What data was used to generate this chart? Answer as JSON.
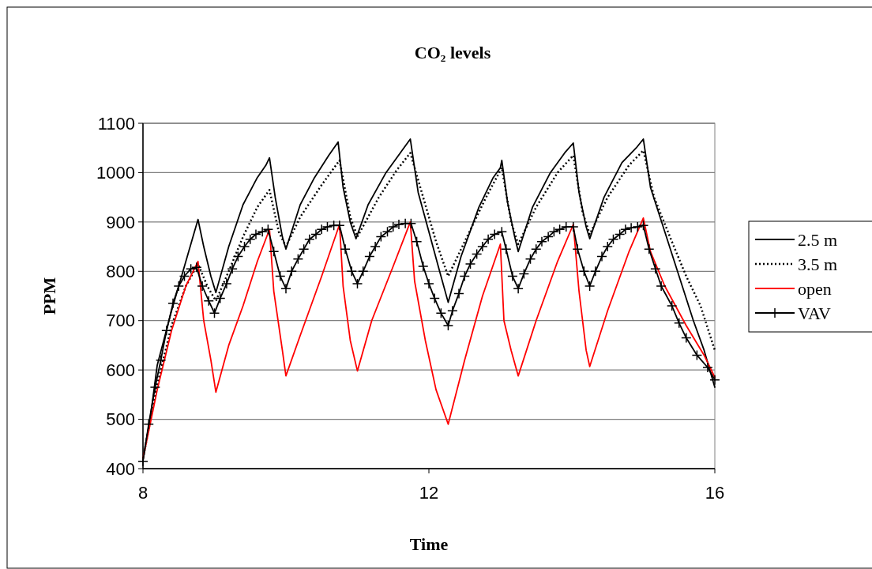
{
  "chart_data": {
    "type": "line",
    "title": "CO₂ levels",
    "xlabel": "Time",
    "ylabel": "PPM",
    "xlim": [
      8,
      16
    ],
    "xticks": [
      8,
      12,
      16
    ],
    "ylim": [
      400,
      1100
    ],
    "yticks": [
      400,
      500,
      600,
      700,
      800,
      900,
      1000,
      1100
    ],
    "grid": "y",
    "legend": "right",
    "series": [
      {
        "name": "2.5 m",
        "color": "#000000",
        "line_style": "solid",
        "marker": "none",
        "x": [
          8,
          8.1,
          8.2,
          8.4,
          8.6,
          8.7,
          8.77,
          8.85,
          8.95,
          9.02,
          9.2,
          9.4,
          9.6,
          9.72,
          9.77,
          9.85,
          9.95,
          10.0,
          10.2,
          10.4,
          10.6,
          10.73,
          10.8,
          10.9,
          10.98,
          11.15,
          11.4,
          11.6,
          11.74,
          11.85,
          12.0,
          12.15,
          12.27,
          12.45,
          12.7,
          12.9,
          13.0,
          13.02,
          13.1,
          13.2,
          13.25,
          13.45,
          13.7,
          13.9,
          14.02,
          14.1,
          14.2,
          14.25,
          14.45,
          14.7,
          14.9,
          15.0,
          15.1,
          15.3,
          15.5,
          15.7,
          15.85,
          16.0
        ],
        "values": [
          420,
          500,
          610,
          720,
          820,
          870,
          905,
          850,
          790,
          757,
          850,
          935,
          990,
          1015,
          1030,
          950,
          870,
          845,
          935,
          990,
          1035,
          1062,
          970,
          900,
          866,
          935,
          1000,
          1040,
          1068,
          960,
          880,
          800,
          737,
          830,
          930,
          990,
          1010,
          1025,
          940,
          870,
          840,
          930,
          1000,
          1040,
          1060,
          960,
          890,
          866,
          950,
          1020,
          1050,
          1068,
          970,
          880,
          790,
          700,
          640,
          565
        ]
      },
      {
        "name": "3.5 m",
        "color": "#000000",
        "line_style": "dotted",
        "marker": "none",
        "x": [
          8,
          8.2,
          8.4,
          8.6,
          8.77,
          8.9,
          9.02,
          9.2,
          9.4,
          9.6,
          9.77,
          9.9,
          10.0,
          10.2,
          10.5,
          10.75,
          10.9,
          11.0,
          11.3,
          11.55,
          11.74,
          11.9,
          12.1,
          12.27,
          12.5,
          12.8,
          13.02,
          13.15,
          13.25,
          13.5,
          13.8,
          14.02,
          14.15,
          14.25,
          14.5,
          14.8,
          15.0,
          15.15,
          15.4,
          15.6,
          15.8,
          16.0
        ],
        "values": [
          420,
          570,
          690,
          770,
          815,
          770,
          740,
          800,
          870,
          930,
          965,
          880,
          850,
          910,
          975,
          1025,
          910,
          870,
          950,
          1005,
          1040,
          960,
          860,
          790,
          860,
          950,
          1010,
          900,
          855,
          930,
          1000,
          1035,
          920,
          875,
          950,
          1015,
          1045,
          950,
          860,
          790,
          730,
          640
        ]
      },
      {
        "name": "open",
        "color": "#ff0000",
        "line_style": "solid",
        "marker": "none",
        "x": [
          8,
          8.2,
          8.4,
          8.6,
          8.77,
          8.85,
          8.95,
          9.02,
          9.2,
          9.4,
          9.6,
          9.77,
          9.83,
          9.95,
          10.0,
          10.2,
          10.5,
          10.75,
          10.8,
          10.9,
          11.0,
          11.2,
          11.5,
          11.74,
          11.8,
          11.95,
          12.1,
          12.27,
          12.5,
          12.75,
          13.0,
          13.05,
          13.15,
          13.25,
          13.5,
          13.8,
          14.02,
          14.1,
          14.2,
          14.25,
          14.5,
          14.8,
          15.0,
          15.1,
          15.3,
          15.6,
          15.85,
          16.0
        ],
        "values": [
          420,
          560,
          680,
          770,
          820,
          700,
          620,
          555,
          650,
          730,
          820,
          885,
          760,
          640,
          588,
          670,
          790,
          895,
          770,
          660,
          598,
          700,
          810,
          900,
          780,
          660,
          560,
          490,
          620,
          750,
          855,
          700,
          640,
          588,
          700,
          820,
          895,
          760,
          640,
          607,
          720,
          840,
          908,
          840,
          770,
          690,
          630,
          585
        ]
      },
      {
        "name": "VAV",
        "color": "#000000",
        "line_style": "solid",
        "marker": "cross",
        "x": [
          8,
          8.08,
          8.17,
          8.25,
          8.33,
          8.42,
          8.5,
          8.58,
          8.67,
          8.75,
          8.83,
          8.92,
          9.0,
          9.08,
          9.17,
          9.25,
          9.33,
          9.42,
          9.5,
          9.58,
          9.67,
          9.75,
          9.83,
          9.92,
          10.0,
          10.08,
          10.17,
          10.25,
          10.33,
          10.42,
          10.5,
          10.58,
          10.67,
          10.75,
          10.83,
          10.92,
          11.0,
          11.08,
          11.17,
          11.25,
          11.33,
          11.42,
          11.5,
          11.58,
          11.67,
          11.75,
          11.83,
          11.92,
          12.0,
          12.08,
          12.17,
          12.27,
          12.33,
          12.42,
          12.5,
          12.58,
          12.67,
          12.75,
          12.83,
          12.92,
          13.02,
          13.08,
          13.17,
          13.25,
          13.33,
          13.42,
          13.5,
          13.58,
          13.67,
          13.75,
          13.83,
          13.92,
          14.02,
          14.08,
          14.17,
          14.25,
          14.33,
          14.42,
          14.5,
          14.58,
          14.67,
          14.75,
          14.83,
          14.92,
          15.0,
          15.08,
          15.17,
          15.25,
          15.4,
          15.5,
          15.6,
          15.75,
          15.9,
          16.0
        ],
        "values": [
          415,
          490,
          565,
          620,
          680,
          735,
          770,
          790,
          805,
          808,
          770,
          740,
          715,
          745,
          775,
          805,
          830,
          850,
          865,
          875,
          880,
          885,
          840,
          790,
          765,
          800,
          825,
          845,
          865,
          875,
          885,
          890,
          893,
          893,
          845,
          800,
          775,
          800,
          830,
          850,
          870,
          880,
          890,
          895,
          897,
          897,
          860,
          810,
          775,
          745,
          715,
          690,
          720,
          755,
          790,
          815,
          835,
          850,
          865,
          875,
          880,
          845,
          790,
          765,
          795,
          825,
          845,
          860,
          870,
          880,
          885,
          890,
          890,
          845,
          800,
          770,
          800,
          830,
          850,
          865,
          875,
          885,
          888,
          890,
          893,
          845,
          805,
          770,
          730,
          695,
          665,
          630,
          605,
          580
        ]
      }
    ]
  }
}
